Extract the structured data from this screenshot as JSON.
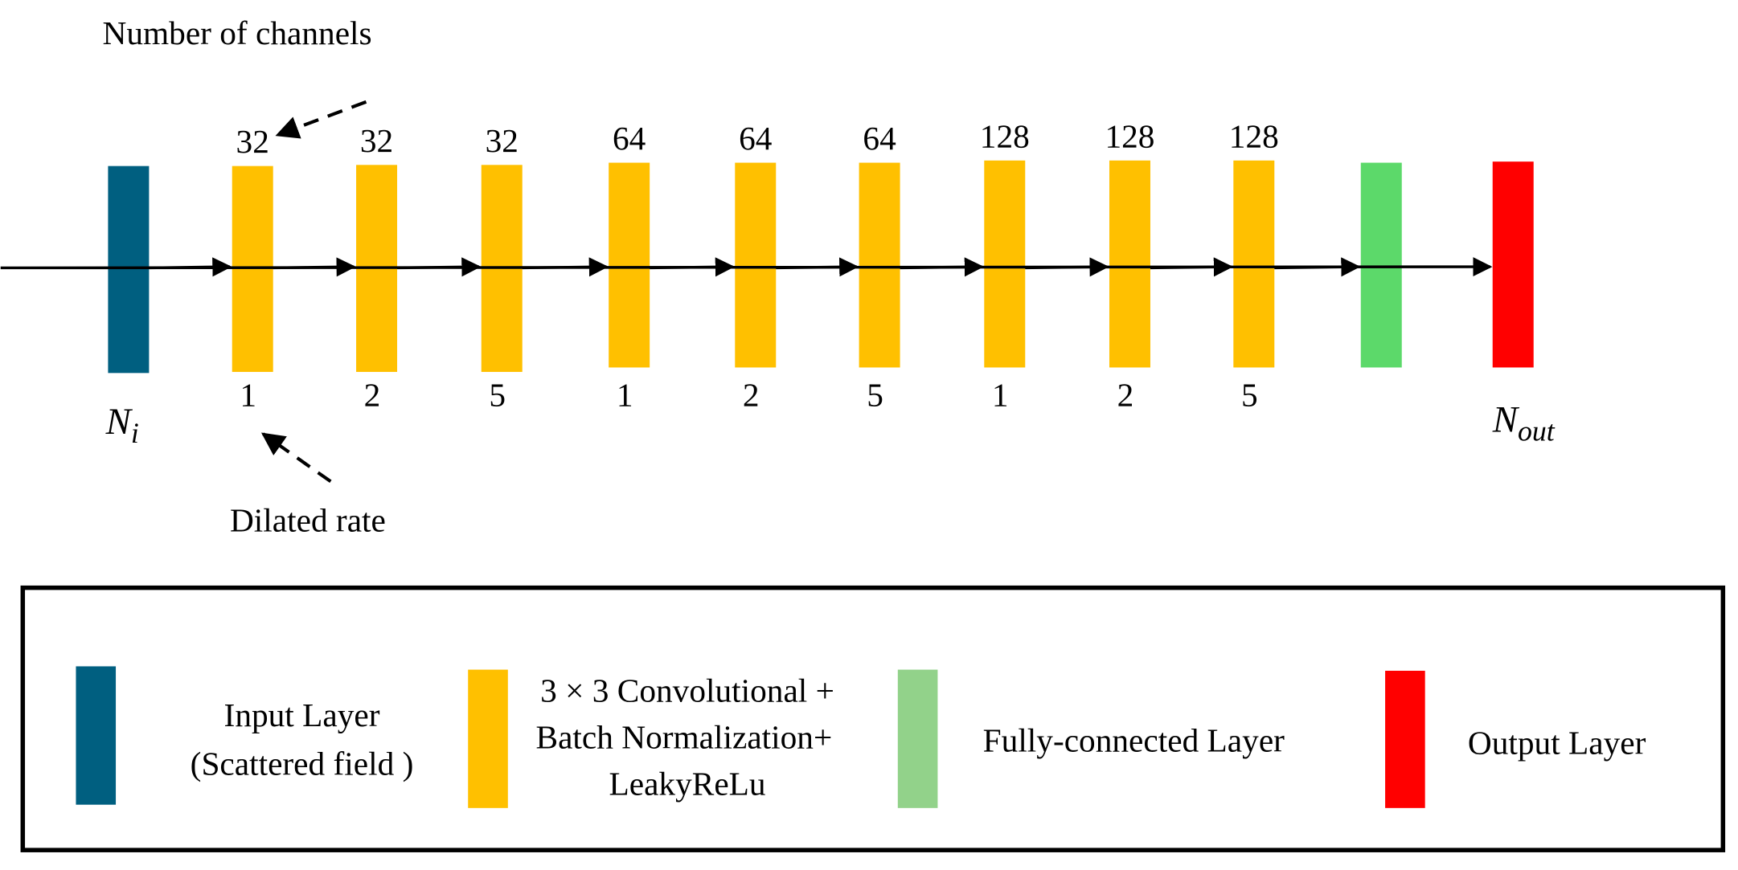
{
  "annotations": {
    "channels": "Number of channels",
    "dilation": "Dilated rate"
  },
  "input_label": {
    "base": "N",
    "sub": "i"
  },
  "output_label": {
    "base": "N",
    "sub": "out"
  },
  "layers": {
    "channels": [
      "32",
      "32",
      "32",
      "64",
      "64",
      "64",
      "128",
      "128",
      "128"
    ],
    "rates": [
      "1",
      "2",
      "5",
      "1",
      "2",
      "5",
      "1",
      "2",
      "5"
    ]
  },
  "legend": {
    "input": [
      "Input Layer",
      "(Scattered field )"
    ],
    "conv": [
      "3 × 3 Convolutional +",
      "Batch Normalization+",
      "LeakyReLu"
    ],
    "fc": [
      "Fully-connected Layer"
    ],
    "output": [
      "Output Layer"
    ]
  }
}
